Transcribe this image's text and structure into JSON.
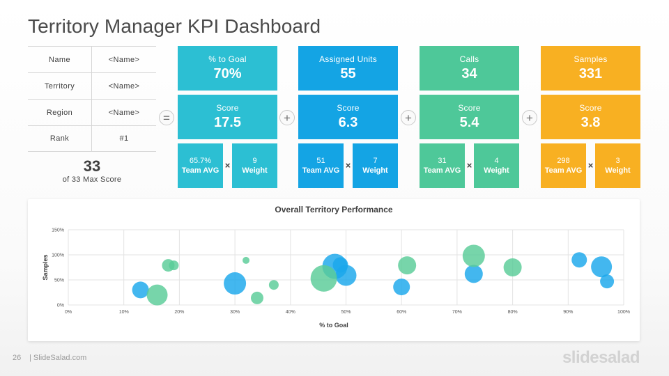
{
  "title": "Territory Manager KPI Dashboard",
  "info_table": [
    {
      "label": "Name",
      "value": "<Name>"
    },
    {
      "label": "Territory",
      "value": "<Name>"
    },
    {
      "label": "Region",
      "value": "<Name>"
    },
    {
      "label": "Rank",
      "value": "#1"
    }
  ],
  "total": {
    "value": "33",
    "caption": "of 33 Max Score"
  },
  "operators": {
    "equals": "=",
    "plus": "+",
    "times": "×"
  },
  "kpis": [
    {
      "label": "% to Goal",
      "value": "70%",
      "score_label": "Score",
      "score": "17.5",
      "team_avg": "65.7%",
      "team_avg_label": "Team AVG",
      "weight": "9",
      "weight_label": "Weight",
      "color": "#2cbfd3"
    },
    {
      "label": "Assigned Units",
      "value": "55",
      "score_label": "Score",
      "score": "6.3",
      "team_avg": "51",
      "team_avg_label": "Team AVG",
      "weight": "7",
      "weight_label": "Weight",
      "color": "#14a4e4"
    },
    {
      "label": "Calls",
      "value": "34",
      "score_label": "Score",
      "score": "5.4",
      "team_avg": "31",
      "team_avg_label": "Team AVG",
      "weight": "4",
      "weight_label": "Weight",
      "color": "#4ec899"
    },
    {
      "label": "Samples",
      "value": "331",
      "score_label": "Score",
      "score": "3.8",
      "team_avg": "298",
      "team_avg_label": "Team AVG",
      "weight": "3",
      "weight_label": "Weight",
      "color": "#f8b022"
    }
  ],
  "chart_data": {
    "type": "scatter",
    "title": "Overall Territory Performance",
    "xlabel": "% to Goal",
    "ylabel": "Samples",
    "xlim": [
      0,
      100
    ],
    "ylim": [
      0,
      150
    ],
    "x_ticks": [
      "0%",
      "10%",
      "20%",
      "30%",
      "40%",
      "50%",
      "60%",
      "70%",
      "80%",
      "90%",
      "100%"
    ],
    "y_ticks": [
      "0%",
      "50%",
      "100%",
      "150%"
    ],
    "grid": true,
    "series": [
      {
        "color": "#1aa7ec",
        "points": [
          {
            "x": 13,
            "y": 30,
            "size": 12
          },
          {
            "x": 30,
            "y": 43,
            "size": 16
          },
          {
            "x": 48,
            "y": 77,
            "size": 18
          },
          {
            "x": 49,
            "y": 80,
            "size": 11
          },
          {
            "x": 50,
            "y": 59,
            "size": 15
          },
          {
            "x": 60,
            "y": 36,
            "size": 12
          },
          {
            "x": 73,
            "y": 62,
            "size": 13
          },
          {
            "x": 92,
            "y": 90,
            "size": 11
          },
          {
            "x": 96,
            "y": 76,
            "size": 15
          },
          {
            "x": 97,
            "y": 47,
            "size": 10
          }
        ]
      },
      {
        "color": "#59cc97",
        "points": [
          {
            "x": 16,
            "y": 20,
            "size": 15
          },
          {
            "x": 18,
            "y": 79,
            "size": 9
          },
          {
            "x": 19,
            "y": 79,
            "size": 7
          },
          {
            "x": 32,
            "y": 89,
            "size": 5
          },
          {
            "x": 34,
            "y": 14,
            "size": 9
          },
          {
            "x": 37,
            "y": 40,
            "size": 7
          },
          {
            "x": 46,
            "y": 53,
            "size": 19
          },
          {
            "x": 61,
            "y": 79,
            "size": 13
          },
          {
            "x": 73,
            "y": 98,
            "size": 16
          },
          {
            "x": 80,
            "y": 75,
            "size": 13
          }
        ]
      }
    ]
  },
  "footer": {
    "page": "26",
    "site": "| SlideSalad.com",
    "logo": "slidesalad"
  }
}
